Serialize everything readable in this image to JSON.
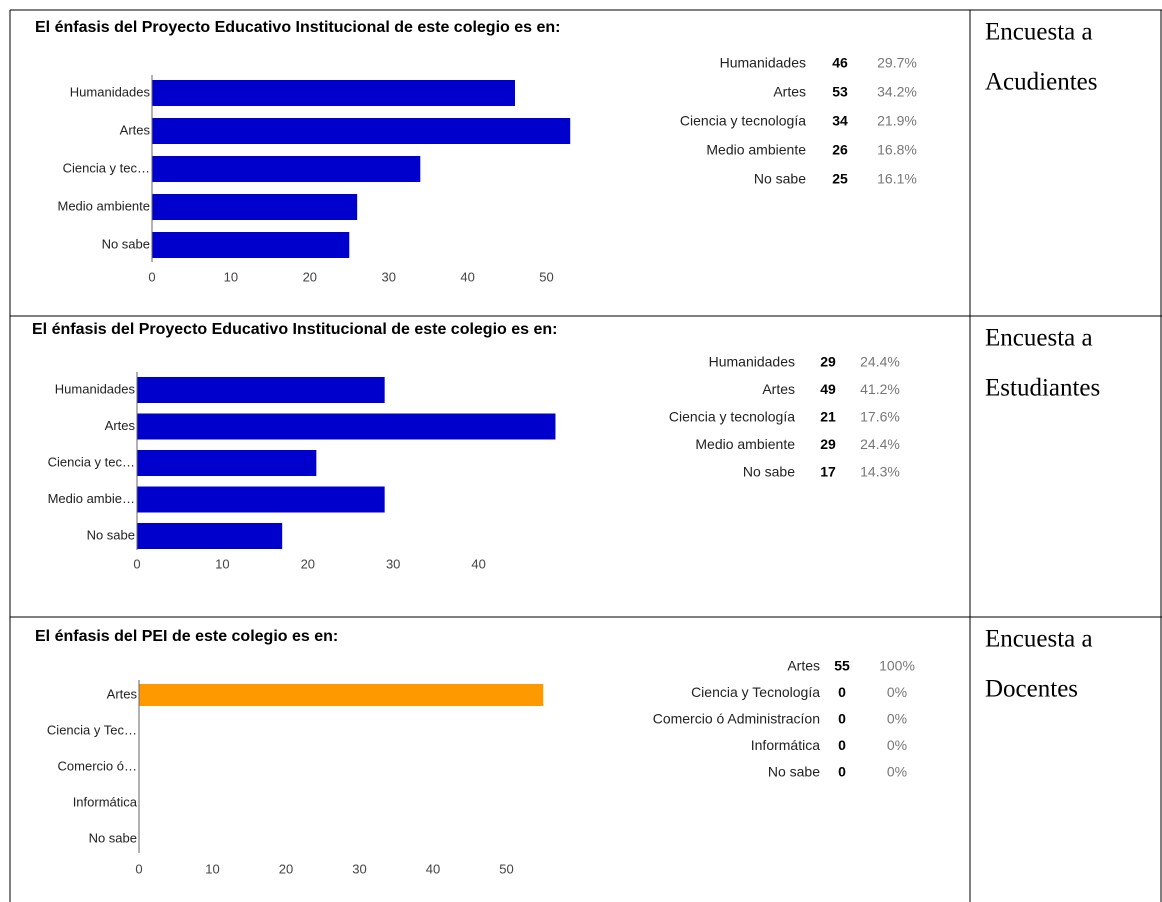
{
  "chart_data": [
    {
      "type": "bar",
      "orientation": "horizontal",
      "title": "El énfasis del Proyecto Educativo Institucional de este colegio es en:",
      "categories": [
        "Humanidades",
        "Artes",
        "Ciencia y tecnología",
        "Medio ambiente",
        "No sabe"
      ],
      "axis_labels": [
        "Humanidades",
        "Artes",
        "Ciencia y tec…",
        "Medio ambiente",
        "No sabe"
      ],
      "values": [
        46,
        53,
        34,
        26,
        25
      ],
      "share_labels": [
        "29.7%",
        "34.2%",
        "21.9%",
        "16.8%",
        "16.1%"
      ],
      "color": "#0000cc",
      "xlim": [
        0,
        55
      ],
      "xticks": [
        0,
        10,
        20,
        30,
        40,
        50
      ]
    },
    {
      "type": "bar",
      "orientation": "horizontal",
      "title": "El énfasis del Proyecto Educativo Institucional de este colegio es en:",
      "categories": [
        "Humanidades",
        "Artes",
        "Ciencia y tecnología",
        "Medio ambiente",
        "No sabe"
      ],
      "axis_labels": [
        "Humanidades",
        "Artes",
        "Ciencia y tec…",
        "Medio ambie…",
        "No sabe"
      ],
      "values": [
        29,
        49,
        21,
        29,
        17
      ],
      "share_labels": [
        "24.4%",
        "41.2%",
        "17.6%",
        "24.4%",
        "14.3%"
      ],
      "color": "#0000cc",
      "xlim": [
        0,
        50
      ],
      "xticks": [
        0,
        10,
        20,
        30,
        40
      ]
    },
    {
      "type": "bar",
      "orientation": "horizontal",
      "title": "El énfasis del PEI de este colegio es en:",
      "categories": [
        "Artes",
        "Ciencia y Tecnología",
        "Comercio ó Administracíon",
        "Informática",
        "No sabe"
      ],
      "axis_labels": [
        "Artes",
        "Ciencia y Tec…",
        "Comercio ó…",
        "Informática",
        "No sabe"
      ],
      "values": [
        55,
        0,
        0,
        0,
        0
      ],
      "share_labels": [
        "100%",
        "0%",
        "0%",
        "0%",
        "0%"
      ],
      "color": "#ff9900",
      "xlim": [
        0,
        60
      ],
      "xticks": [
        0,
        10,
        20,
        30,
        40,
        50
      ]
    }
  ],
  "labels": [
    [
      "Encuesta a",
      "Acudientes"
    ],
    [
      "Encuesta a",
      "Estudiantes"
    ],
    [
      "Encuesta a",
      "Docentes"
    ]
  ]
}
